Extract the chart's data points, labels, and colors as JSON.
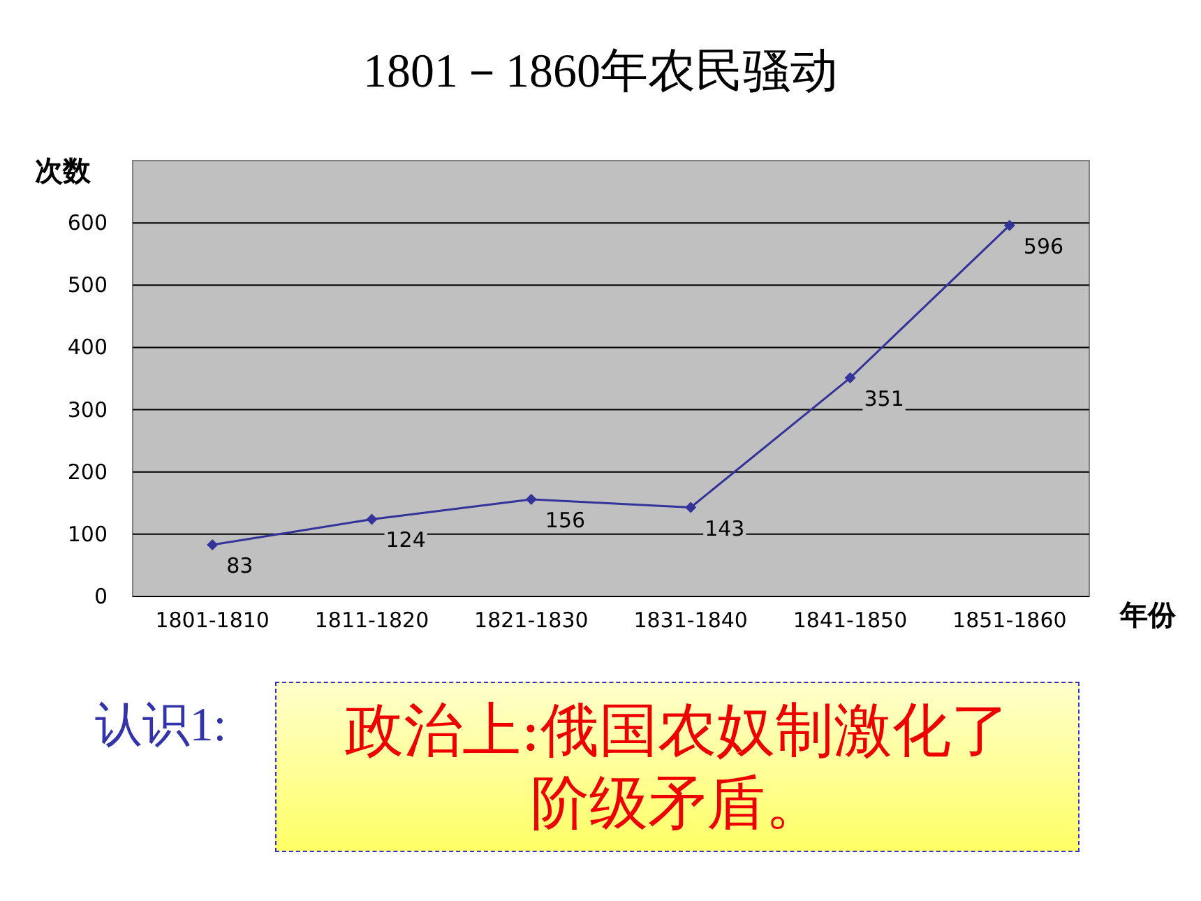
{
  "chart_data": {
    "type": "line",
    "title": "1801－1860年农民骚动",
    "ylabel": "次数",
    "xlabel": "年份",
    "categories": [
      "1801-1810",
      "1811-1820",
      "1821-1830",
      "1831-1840",
      "1841-1850",
      "1851-1860"
    ],
    "values": [
      83,
      124,
      156,
      143,
      351,
      596
    ],
    "color": "#333399",
    "ylim": [
      0,
      700
    ],
    "yticks": [
      0,
      100,
      200,
      300,
      400,
      500,
      600
    ],
    "grid": "y",
    "marker": "diamond",
    "data_labels": true,
    "annotations": [
      "认识1:",
      "政治上:俄国农奴制激化了阶级矛盾。"
    ]
  }
}
